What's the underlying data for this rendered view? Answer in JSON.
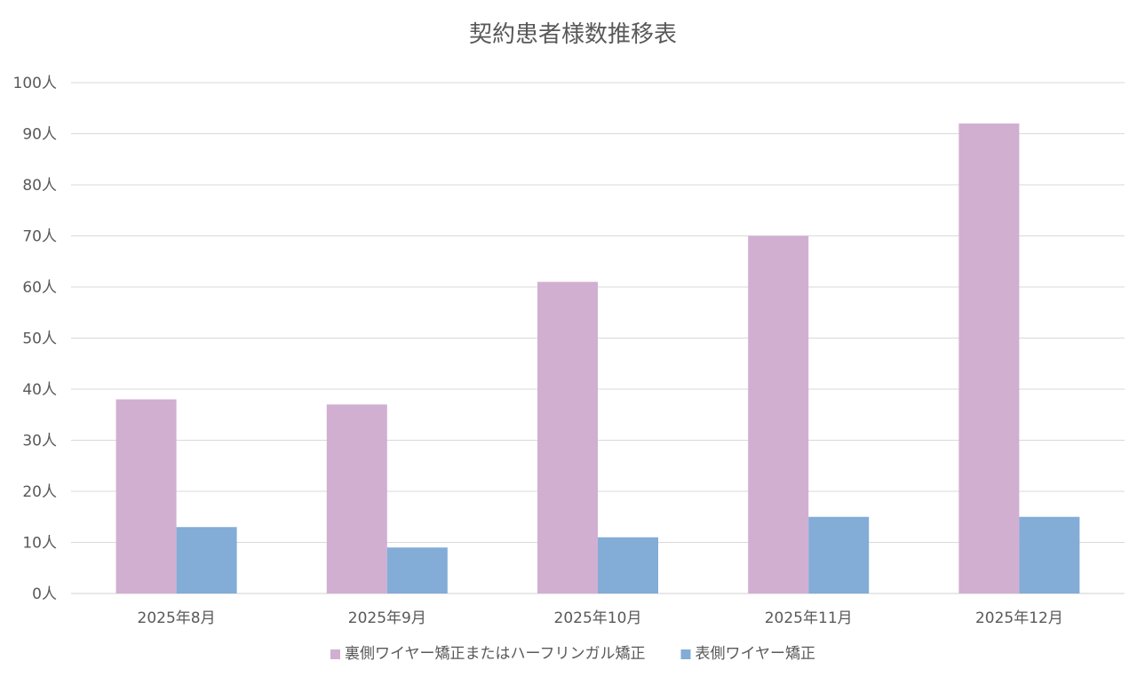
{
  "chart_data": {
    "type": "bar",
    "title": "契約患者様数推移表",
    "xlabel": "",
    "ylabel": "",
    "categories": [
      "2025年8月",
      "2025年9月",
      "2025年10月",
      "2025年11月",
      "2025年12月"
    ],
    "series": [
      {
        "name": "裏側ワイヤー矯正またはハーフリンガル矯正",
        "color": "#d1afd1",
        "values": [
          38,
          37,
          61,
          70,
          92
        ]
      },
      {
        "name": "表側ワイヤー矯正",
        "color": "#83acd7",
        "values": [
          13,
          9,
          11,
          15,
          15
        ]
      }
    ],
    "ylim": [
      0,
      100
    ],
    "y_ticks": [
      0,
      10,
      20,
      30,
      40,
      50,
      60,
      70,
      80,
      90,
      100
    ],
    "y_tick_labels": [
      "0人",
      "10人",
      "20人",
      "30人",
      "40人",
      "50人",
      "60人",
      "70人",
      "80人",
      "90人",
      "100人"
    ],
    "grid": true,
    "legend_position": "bottom"
  }
}
